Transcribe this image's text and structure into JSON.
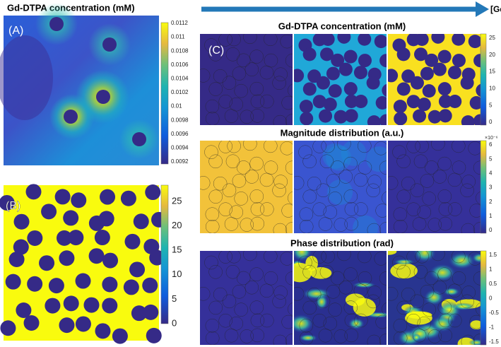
{
  "panel_a": {
    "label": "(A)",
    "title": "Gd-DTPA concentration (mM)",
    "colorbar_ticks": [
      0.0112,
      0.011,
      0.0108,
      0.0106,
      0.0104,
      0.0102,
      0.01,
      0.0098,
      0.0096,
      0.0094,
      0.0092
    ]
  },
  "panel_b": {
    "label": "(B)",
    "colorbar_ticks": [
      25,
      20,
      15,
      10,
      5,
      0
    ]
  },
  "panel_c": {
    "label": "(C)",
    "arrow_label": "[Gd]",
    "rows": [
      {
        "title": "Gd-DTPA concentration (mM)",
        "colorbar_ticks": [
          25,
          20,
          15,
          10,
          5,
          0
        ]
      },
      {
        "title": "Magnitude distribution (a.u.)",
        "exponent": "×10⁻⁶",
        "colorbar_ticks": [
          6,
          5,
          4,
          3,
          2,
          1,
          0
        ]
      },
      {
        "title": "Phase distribution (rad)",
        "colorbar_ticks": [
          1.5,
          1,
          0.5,
          0,
          -0.5,
          -1,
          -1.5
        ]
      }
    ]
  }
}
